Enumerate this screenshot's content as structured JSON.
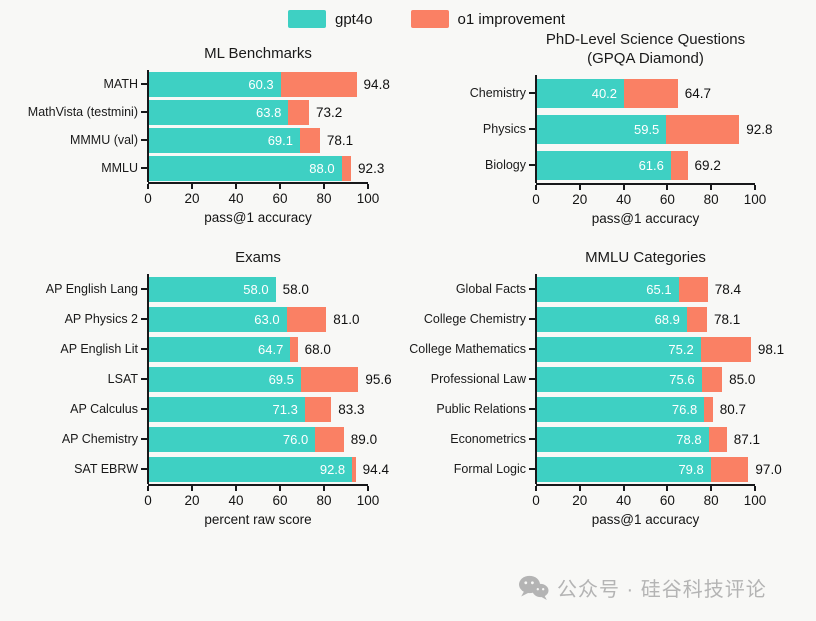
{
  "legend": {
    "items": [
      {
        "label": "gpt4o",
        "color": "#3ed0c3"
      },
      {
        "label": "o1 improvement",
        "color": "#fa8064"
      }
    ]
  },
  "colors": {
    "gpt4o": "#3ed0c3",
    "o1_improvement": "#fa8064",
    "spine": "#17181a",
    "background": "#f8f8f6",
    "watermark": "#b4b4b4"
  },
  "chart_data": [
    {
      "type": "bar",
      "orientation": "horizontal",
      "title": "ML Benchmarks",
      "xlabel": "pass@1 accuracy",
      "xlim": [
        0,
        100
      ],
      "xticks": [
        0,
        20,
        40,
        60,
        80,
        100
      ],
      "grid": false,
      "categories": [
        "MATH",
        "MathVista (testmini)",
        "MMMU (val)",
        "MMLU"
      ],
      "series": [
        {
          "name": "gpt4o",
          "values": [
            60.3,
            63.8,
            69.1,
            88.0
          ]
        },
        {
          "name": "o1",
          "values": [
            94.8,
            73.2,
            78.1,
            92.3
          ]
        }
      ]
    },
    {
      "type": "bar",
      "orientation": "horizontal",
      "title": "PhD-Level Science Questions",
      "title_line2": "(GPQA Diamond)",
      "xlabel": "pass@1 accuracy",
      "xlim": [
        0,
        100
      ],
      "xticks": [
        0,
        20,
        40,
        60,
        80,
        100
      ],
      "grid": false,
      "categories": [
        "Chemistry",
        "Physics",
        "Biology"
      ],
      "series": [
        {
          "name": "gpt4o",
          "values": [
            40.2,
            59.5,
            61.6
          ]
        },
        {
          "name": "o1",
          "values": [
            64.7,
            92.8,
            69.2
          ]
        }
      ]
    },
    {
      "type": "bar",
      "orientation": "horizontal",
      "title": "Exams",
      "xlabel": "percent raw score",
      "xlim": [
        0,
        100
      ],
      "xticks": [
        0,
        20,
        40,
        60,
        80,
        100
      ],
      "grid": false,
      "categories": [
        "AP English Lang",
        "AP Physics 2",
        "AP English Lit",
        "LSAT",
        "AP Calculus",
        "AP Chemistry",
        "SAT EBRW"
      ],
      "series": [
        {
          "name": "gpt4o",
          "values": [
            58.0,
            63.0,
            64.7,
            69.5,
            71.3,
            76.0,
            92.8
          ]
        },
        {
          "name": "o1",
          "values": [
            58.0,
            81.0,
            68.0,
            95.6,
            83.3,
            89.0,
            94.4
          ]
        }
      ]
    },
    {
      "type": "bar",
      "orientation": "horizontal",
      "title": "MMLU Categories",
      "xlabel": "pass@1 accuracy",
      "xlim": [
        0,
        100
      ],
      "xticks": [
        0,
        20,
        40,
        60,
        80,
        100
      ],
      "grid": false,
      "categories": [
        "Global Facts",
        "College Chemistry",
        "College Mathematics",
        "Professional Law",
        "Public Relations",
        "Econometrics",
        "Formal Logic"
      ],
      "series": [
        {
          "name": "gpt4o",
          "values": [
            65.1,
            68.9,
            75.2,
            75.6,
            76.8,
            78.8,
            79.8
          ]
        },
        {
          "name": "o1",
          "values": [
            78.4,
            78.1,
            98.1,
            85.0,
            80.7,
            87.1,
            97.0
          ]
        }
      ]
    }
  ],
  "watermark": {
    "icon": "wechat-icon",
    "text": "公众号 · 硅谷科技评论"
  }
}
